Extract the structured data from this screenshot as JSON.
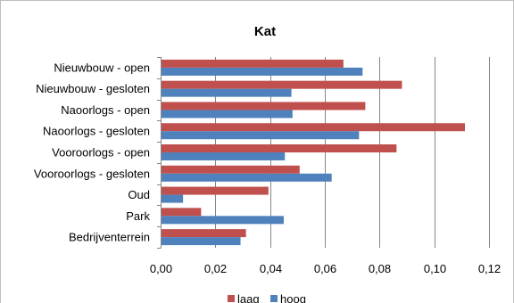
{
  "chart_data": {
    "type": "bar",
    "orientation": "horizontal",
    "title": "Kat",
    "xlabel": "",
    "ylabel": "",
    "categories": [
      "Nieuwbouw - open",
      "Nieuwbouw - gesloten",
      "Naoorlogs - open",
      "Naoorlogs - gesloten",
      "Vooroorlogs - open",
      "Vooroorlogs - gesloten",
      "Oud",
      "Park",
      "Bedrijventerrein"
    ],
    "series": [
      {
        "name": "laag",
        "color": "#C0504D",
        "values": [
          0.0668,
          0.0882,
          0.0748,
          0.1112,
          0.0862,
          0.0508,
          0.0394,
          0.0148,
          0.0312
        ]
      },
      {
        "name": "hoog",
        "color": "#4F81BD",
        "values": [
          0.0738,
          0.0478,
          0.0482,
          0.0725,
          0.0454,
          0.0625,
          0.0082,
          0.045,
          0.0292
        ]
      }
    ],
    "xlim": [
      0,
      0.12
    ],
    "xticks": [
      "0,00",
      "0,02",
      "0,04",
      "0,06",
      "0,08",
      "0,10",
      "0,12"
    ],
    "grid": true,
    "legend_position": "bottom"
  }
}
